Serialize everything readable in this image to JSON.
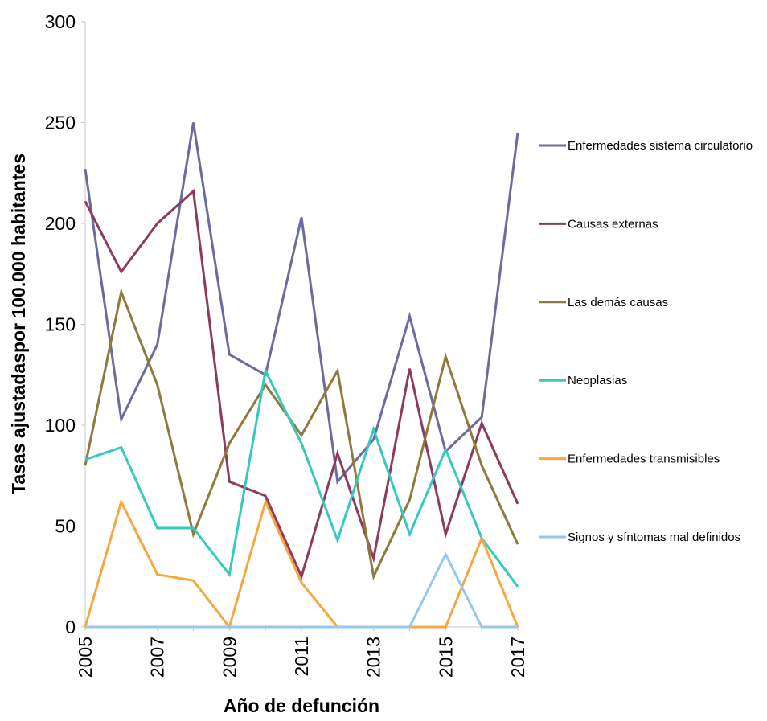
{
  "chart_data": {
    "type": "line",
    "title": "",
    "xlabel": "Año de defunción",
    "ylabel": "Tasas ajustadaspor 100.000 habitantes",
    "x": [
      2005,
      2006,
      2007,
      2008,
      2009,
      2010,
      2011,
      2012,
      2013,
      2014,
      2015,
      2016,
      2017
    ],
    "x_tick_labels": [
      "2005",
      "2007",
      "2009",
      "2011",
      "2013",
      "2015",
      "2017"
    ],
    "y_tick_labels": [
      "0",
      "50",
      "100",
      "150",
      "200",
      "250",
      "300"
    ],
    "ylim": [
      0,
      300
    ],
    "grid": false,
    "legend_position": "right",
    "series": [
      {
        "name": "Enfermedades sistema circulatorio",
        "color": "#6b6b9e",
        "values": [
          227,
          103,
          140,
          250,
          135,
          125,
          203,
          72,
          93,
          154,
          87,
          104,
          245
        ]
      },
      {
        "name": "Causas externas",
        "color": "#8e3a5e",
        "values": [
          211,
          176,
          200,
          216,
          72,
          65,
          25,
          86,
          34,
          128,
          46,
          101,
          61
        ]
      },
      {
        "name": "Las demás causas",
        "color": "#8e7a3c",
        "values": [
          80,
          166,
          120,
          46,
          91,
          120,
          95,
          127,
          25,
          63,
          134,
          80,
          41
        ]
      },
      {
        "name": "Neoplasias",
        "color": "#35c9c0",
        "values": [
          83,
          89,
          49,
          49,
          26,
          127,
          91,
          43,
          98,
          46,
          88,
          44,
          20
        ]
      },
      {
        "name": "Enfermedades transmisibles",
        "color": "#f5a840",
        "values": [
          0,
          62,
          26,
          23,
          0,
          62,
          22,
          0,
          0,
          0,
          0,
          44,
          0
        ]
      },
      {
        "name": "Signos y síntomas mal definidos",
        "color": "#99c6ef",
        "values": [
          0,
          0,
          0,
          0,
          0,
          0,
          0,
          0,
          0,
          0,
          36,
          0,
          0
        ]
      }
    ]
  }
}
